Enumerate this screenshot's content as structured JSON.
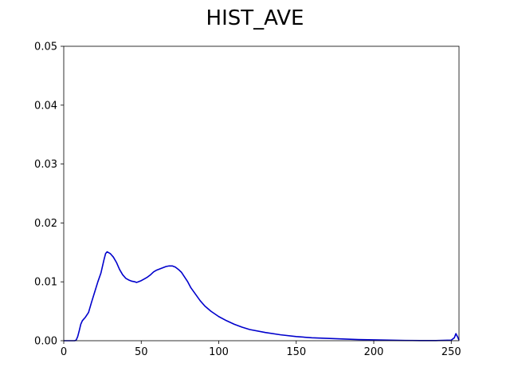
{
  "chart_data": {
    "type": "line",
    "title": "HIST_AVE",
    "xlabel": "",
    "ylabel": "",
    "xlim": [
      0,
      255
    ],
    "ylim": [
      0,
      0.05
    ],
    "xticks": [
      0,
      50,
      100,
      150,
      200,
      250
    ],
    "xtick_labels": [
      "0",
      "50",
      "100",
      "150",
      "200",
      "250"
    ],
    "yticks": [
      0,
      0.01,
      0.02,
      0.03,
      0.04,
      0.05
    ],
    "ytick_labels": [
      "0.00",
      "0.01",
      "0.02",
      "0.03",
      "0.04",
      "0.05"
    ],
    "grid": false,
    "series": [
      {
        "color": "#0000cc",
        "x": [
          0,
          4,
          7,
          8,
          9,
          10,
          11,
          12,
          14,
          16,
          18,
          20,
          22,
          24,
          26,
          27,
          28,
          30,
          32,
          34,
          36,
          38,
          40,
          42,
          44,
          46,
          47,
          48,
          50,
          52,
          54,
          56,
          58,
          60,
          62,
          64,
          66,
          68,
          70,
          72,
          74,
          76,
          78,
          80,
          82,
          85,
          88,
          91,
          95,
          100,
          105,
          110,
          115,
          120,
          130,
          140,
          150,
          160,
          170,
          180,
          190,
          200,
          210,
          220,
          230,
          240,
          250,
          252,
          253,
          254,
          255
        ],
        "y": [
          0,
          0,
          0,
          0.0001,
          0.0007,
          0.0017,
          0.0028,
          0.0034,
          0.004,
          0.0048,
          0.0066,
          0.0083,
          0.01,
          0.0115,
          0.0138,
          0.0148,
          0.0151,
          0.0148,
          0.0142,
          0.0133,
          0.0121,
          0.0112,
          0.0106,
          0.0103,
          0.0101,
          0.01,
          0.0099,
          0.01,
          0.0102,
          0.0105,
          0.0108,
          0.0112,
          0.0117,
          0.012,
          0.0122,
          0.0124,
          0.0126,
          0.0127,
          0.0127,
          0.0125,
          0.0121,
          0.0116,
          0.0108,
          0.01,
          0.009,
          0.0079,
          0.0068,
          0.0059,
          0.005,
          0.0041,
          0.0034,
          0.0028,
          0.0023,
          0.0019,
          0.0014,
          0.001,
          0.0007,
          0.0005,
          0.0004,
          0.0003,
          0.0002,
          0.00015,
          0.0001,
          5e-05,
          3e-05,
          2e-05,
          0.0001,
          0.0005,
          0.0012,
          0.0007,
          0.0001
        ]
      }
    ]
  }
}
